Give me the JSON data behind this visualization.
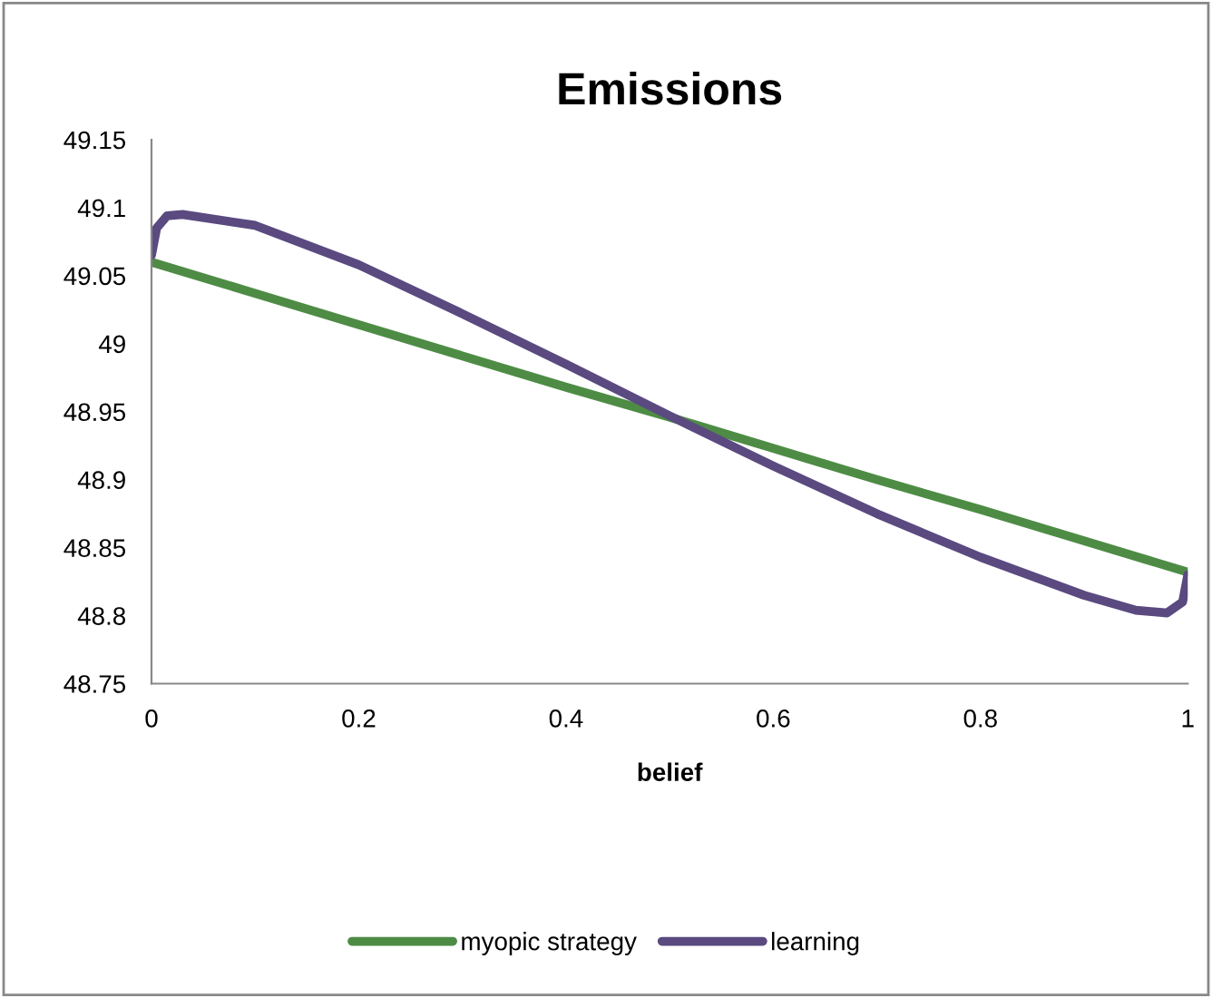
{
  "chart_data": {
    "type": "line",
    "title": "Emissions",
    "xlabel": "belief",
    "xlim": [
      0,
      1
    ],
    "xticks": [
      0,
      0.2,
      0.4,
      0.6,
      0.8,
      1
    ],
    "ylim": [
      48.75,
      49.15
    ],
    "yticks": [
      48.75,
      48.8,
      48.85,
      48.9,
      48.95,
      49,
      49.05,
      49.1,
      49.15
    ],
    "grid": false,
    "legend": "bottom",
    "marker": "none",
    "line_style": "solid",
    "series": [
      {
        "name": "myopic strategy",
        "color": "#4e8c45",
        "x": [
          0,
          0.1,
          0.2,
          0.3,
          0.4,
          0.5,
          0.6,
          0.7,
          0.8,
          0.9,
          1
        ],
        "values": [
          49.06,
          49.037,
          49.014,
          48.991,
          48.968,
          48.946,
          48.923,
          48.9,
          48.878,
          48.855,
          48.832
        ]
      },
      {
        "name": "learning",
        "color": "#5a4a80",
        "x": [
          0,
          0.005,
          0.015,
          0.03,
          0.1,
          0.2,
          0.3,
          0.4,
          0.5,
          0.6,
          0.7,
          0.8,
          0.9,
          0.95,
          0.98,
          0.995,
          1
        ],
        "values": [
          49.065,
          49.085,
          49.094,
          49.095,
          49.087,
          49.058,
          49.022,
          48.985,
          48.947,
          48.91,
          48.875,
          48.843,
          48.815,
          48.804,
          48.802,
          48.81,
          48.83
        ]
      }
    ]
  }
}
